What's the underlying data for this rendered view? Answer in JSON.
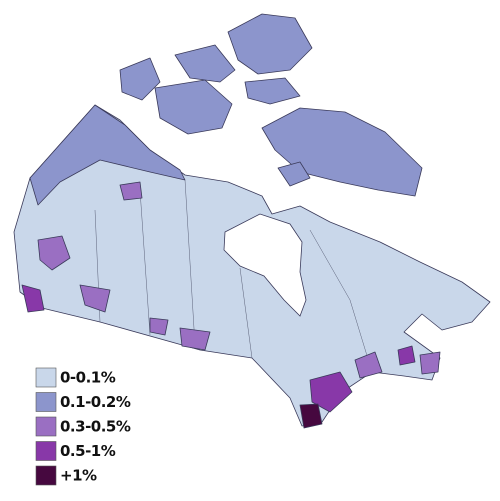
{
  "legend": {
    "items": [
      {
        "label": "0-0.1%",
        "color": "#c9d7ea"
      },
      {
        "label": "0.1-0.2%",
        "color": "#8c95cc"
      },
      {
        "label": "0.3-0.5%",
        "color": "#9a6fc2"
      },
      {
        "label": "0.5-1%",
        "color": "#8838a8"
      },
      {
        "label": "+1%",
        "color": "#46083f"
      }
    ]
  }
}
